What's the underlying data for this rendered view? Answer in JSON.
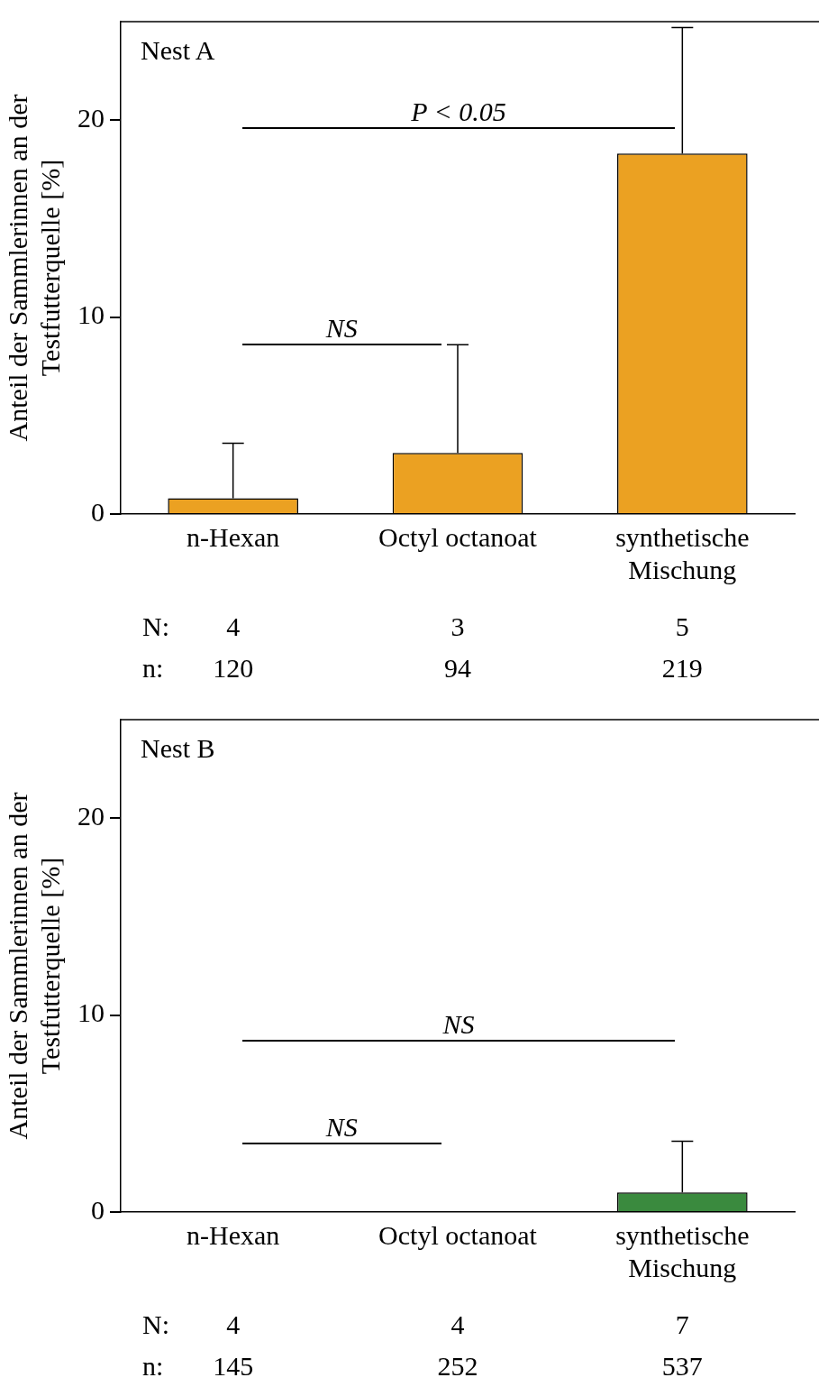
{
  "chart_data": [
    {
      "type": "bar",
      "title": "Nest A",
      "ylabel": "Anteil der Sammlerinnen an der\nTestfutterquelle [%]",
      "categories": [
        "n-Hexan",
        "Octyl octanoat",
        "synthetische\nMischung"
      ],
      "values": [
        0.8,
        3.1,
        18.3
      ],
      "errors": [
        [
          0.8,
          3.6
        ],
        [
          3.1,
          8.6
        ],
        [
          18.3,
          24.7
        ]
      ],
      "color": "#eba122",
      "ylim": [
        0,
        25
      ],
      "yticks": [
        0,
        10,
        20
      ],
      "annotations": [
        "P < 0.05",
        "NS",
        "N:",
        "4",
        "3",
        "5",
        "n:",
        "120",
        "94",
        "219"
      ]
    },
    {
      "type": "bar",
      "title": "Nest B",
      "ylabel": "Anteil der Sammlerinnen an der\nTestfutterquelle [%]",
      "categories": [
        "n-Hexan",
        "Octyl octanoat",
        "synthetische\nMischung"
      ],
      "values": [
        0,
        0,
        1.0
      ],
      "errors": [
        null,
        null,
        [
          1.0,
          3.6
        ]
      ],
      "color": "#3a8a3e",
      "ylim": [
        0,
        25
      ],
      "yticks": [
        0,
        10,
        20
      ],
      "annotations": [
        "NS",
        "NS",
        "N:",
        "4",
        "4",
        "7",
        "n:",
        "145",
        "252",
        "537"
      ]
    }
  ]
}
